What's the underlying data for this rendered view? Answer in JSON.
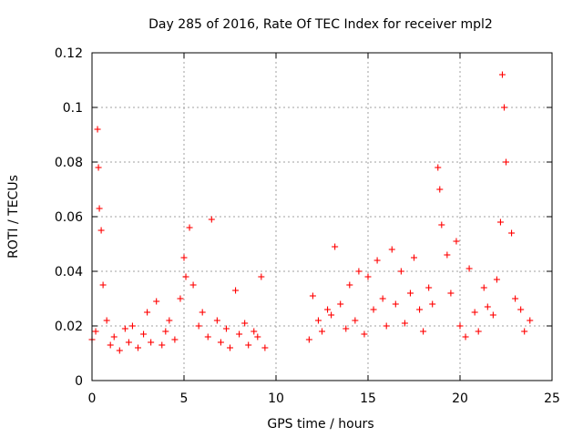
{
  "chart_data": {
    "type": "scatter",
    "title": "Day 285 of 2016, Rate Of TEC Index for receiver mpl2",
    "xlabel": "GPS time / hours",
    "ylabel": "ROTI / TECUs",
    "xlim": [
      0,
      25
    ],
    "ylim": [
      0,
      0.12
    ],
    "x_ticks": [
      0,
      5,
      10,
      15,
      20,
      25
    ],
    "x_tick_labels": [
      "0",
      "5",
      "10",
      "15",
      "20",
      "25"
    ],
    "y_ticks": [
      0,
      0.02,
      0.04,
      0.06,
      0.08,
      0.1,
      0.12
    ],
    "y_tick_labels": [
      "0",
      "0.02",
      "0.04",
      "0.06",
      "0.08",
      "0.1",
      "0.12"
    ],
    "grid": true,
    "legend": "none",
    "marker": "+",
    "color": "#ff0000",
    "series": [
      {
        "name": "ROTI",
        "x": [
          0.0,
          0.2,
          0.3,
          0.35,
          0.4,
          0.5,
          0.6,
          0.8,
          1.0,
          1.2,
          1.5,
          1.8,
          2.0,
          2.2,
          2.5,
          2.8,
          3.0,
          3.2,
          3.5,
          3.8,
          4.0,
          4.2,
          4.5,
          4.8,
          5.0,
          5.1,
          5.3,
          5.5,
          5.8,
          6.0,
          6.3,
          6.5,
          6.8,
          7.0,
          7.3,
          7.5,
          7.8,
          8.0,
          8.3,
          8.5,
          8.8,
          9.0,
          9.2,
          9.4,
          11.8,
          12.0,
          12.3,
          12.5,
          12.8,
          13.0,
          13.2,
          13.5,
          13.8,
          14.0,
          14.3,
          14.5,
          14.8,
          15.0,
          15.3,
          15.5,
          15.8,
          16.0,
          16.3,
          16.5,
          16.8,
          17.0,
          17.3,
          17.5,
          17.8,
          18.0,
          18.3,
          18.5,
          18.8,
          18.9,
          19.0,
          19.3,
          19.5,
          19.8,
          20.0,
          20.3,
          20.5,
          20.8,
          21.0,
          21.3,
          21.5,
          21.8,
          22.0,
          22.2,
          22.3,
          22.4,
          22.5,
          22.8,
          23.0,
          23.3,
          23.5,
          23.8
        ],
        "y": [
          0.015,
          0.018,
          0.092,
          0.078,
          0.063,
          0.055,
          0.035,
          0.022,
          0.013,
          0.016,
          0.011,
          0.019,
          0.014,
          0.02,
          0.012,
          0.017,
          0.025,
          0.014,
          0.029,
          0.013,
          0.018,
          0.022,
          0.015,
          0.03,
          0.045,
          0.038,
          0.056,
          0.035,
          0.02,
          0.025,
          0.016,
          0.059,
          0.022,
          0.014,
          0.019,
          0.012,
          0.033,
          0.017,
          0.021,
          0.013,
          0.018,
          0.016,
          0.038,
          0.012,
          0.015,
          0.031,
          0.022,
          0.018,
          0.026,
          0.024,
          0.049,
          0.028,
          0.019,
          0.035,
          0.022,
          0.04,
          0.017,
          0.038,
          0.026,
          0.044,
          0.03,
          0.02,
          0.048,
          0.028,
          0.04,
          0.021,
          0.032,
          0.045,
          0.026,
          0.018,
          0.034,
          0.028,
          0.078,
          0.07,
          0.057,
          0.046,
          0.032,
          0.051,
          0.02,
          0.016,
          0.041,
          0.025,
          0.018,
          0.034,
          0.027,
          0.024,
          0.037,
          0.058,
          0.112,
          0.1,
          0.08,
          0.054,
          0.03,
          0.026,
          0.018,
          0.022
        ]
      }
    ]
  }
}
